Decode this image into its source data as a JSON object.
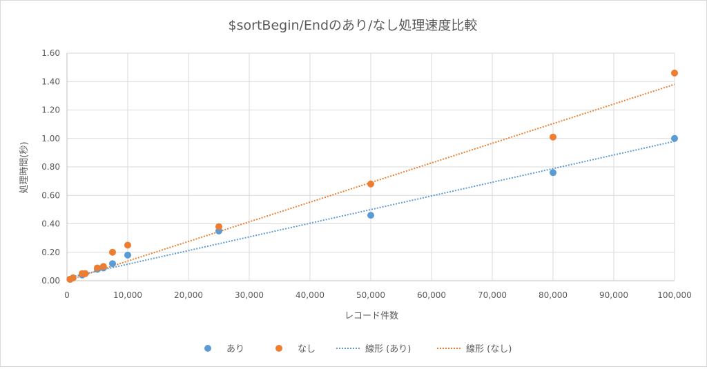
{
  "chart_data": {
    "type": "scatter",
    "title": "$sortBegin/Endのあり/なし処理速度比較",
    "xlabel": "レコード件数",
    "ylabel": "処理時間(秒)",
    "xlim": [
      0,
      100000
    ],
    "ylim": [
      0,
      1.6
    ],
    "x_ticks": [
      "0",
      "10,000",
      "20,000",
      "30,000",
      "40,000",
      "50,000",
      "60,000",
      "70,000",
      "80,000",
      "90,000",
      "100,000"
    ],
    "y_ticks": [
      "0.00",
      "0.20",
      "0.40",
      "0.60",
      "0.80",
      "1.00",
      "1.20",
      "1.40",
      "1.60"
    ],
    "grid": true,
    "legend_position": "bottom",
    "series": [
      {
        "name": "あり",
        "color": "#5b9bd5",
        "points": [
          {
            "x": 500,
            "y": 0.01
          },
          {
            "x": 1000,
            "y": 0.02
          },
          {
            "x": 2500,
            "y": 0.04
          },
          {
            "x": 3000,
            "y": 0.05
          },
          {
            "x": 5000,
            "y": 0.08
          },
          {
            "x": 6000,
            "y": 0.09
          },
          {
            "x": 7500,
            "y": 0.12
          },
          {
            "x": 10000,
            "y": 0.18
          },
          {
            "x": 25000,
            "y": 0.35
          },
          {
            "x": 50000,
            "y": 0.46
          },
          {
            "x": 80000,
            "y": 0.76
          },
          {
            "x": 100000,
            "y": 1.0
          }
        ]
      },
      {
        "name": "なし",
        "color": "#ed7d31",
        "points": [
          {
            "x": 500,
            "y": 0.01
          },
          {
            "x": 1000,
            "y": 0.02
          },
          {
            "x": 2500,
            "y": 0.05
          },
          {
            "x": 3000,
            "y": 0.05
          },
          {
            "x": 5000,
            "y": 0.09
          },
          {
            "x": 6000,
            "y": 0.1
          },
          {
            "x": 7500,
            "y": 0.2
          },
          {
            "x": 10000,
            "y": 0.25
          },
          {
            "x": 25000,
            "y": 0.38
          },
          {
            "x": 50000,
            "y": 0.68
          },
          {
            "x": 80000,
            "y": 1.01
          },
          {
            "x": 100000,
            "y": 1.46
          }
        ]
      }
    ],
    "trendlines": [
      {
        "name": "線形 (あり)",
        "color": "#5b9bd5",
        "x0": 0,
        "y0": 0.02,
        "x1": 100000,
        "y1": 0.98
      },
      {
        "name": "線形 (なし)",
        "color": "#ed7d31",
        "x0": 0,
        "y0": 0.0,
        "x1": 100000,
        "y1": 1.38
      }
    ]
  }
}
